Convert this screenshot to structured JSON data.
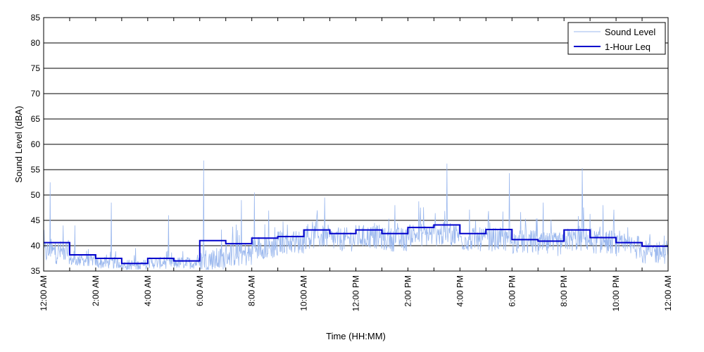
{
  "chart_data": {
    "type": "line",
    "title": "",
    "xlabel": "Time (HH:MM)",
    "ylabel": "Sound Level (dBA)",
    "ylim": [
      35,
      85
    ],
    "yticks": [
      35,
      40,
      45,
      50,
      55,
      60,
      65,
      70,
      75,
      80,
      85
    ],
    "xlim_hours": [
      0,
      24
    ],
    "xtick_labels": [
      "12:00 AM",
      "2:00 AM",
      "4:00 AM",
      "6:00 AM",
      "8:00 AM",
      "10:00 AM",
      "12:00 PM",
      "2:00 PM",
      "4:00 PM",
      "6:00 PM",
      "8:00 PM",
      "10:00 PM",
      "12:00 AM"
    ],
    "grid": "horizontal",
    "legend_position": "top-right",
    "colors": {
      "sound_level": "#9bb8ee",
      "leq": "#0000cc"
    },
    "series": [
      {
        "name": "Sound Level",
        "style": "thin-light-blue",
        "hourly_baseline": [
          38.5,
          37.0,
          36.5,
          36.0,
          36.5,
          36.5,
          37.0,
          38.0,
          39.5,
          40.5,
          41.5,
          41.0,
          41.5,
          41.0,
          42.0,
          42.0,
          41.0,
          41.0,
          40.5,
          40.0,
          41.0,
          40.5,
          39.5,
          38.5
        ],
        "peaks": [
          {
            "hour": 0.25,
            "value": 52.5
          },
          {
            "hour": 0.75,
            "value": 44.0
          },
          {
            "hour": 1.2,
            "value": 44.0
          },
          {
            "hour": 2.6,
            "value": 48.5
          },
          {
            "hour": 4.8,
            "value": 46.0
          },
          {
            "hour": 6.15,
            "value": 56.8
          },
          {
            "hour": 7.6,
            "value": 49.0
          },
          {
            "hour": 8.1,
            "value": 50.5
          },
          {
            "hour": 10.8,
            "value": 49.5
          },
          {
            "hour": 13.5,
            "value": 48.0
          },
          {
            "hour": 15.5,
            "value": 56.2
          },
          {
            "hour": 17.9,
            "value": 54.3
          },
          {
            "hour": 19.2,
            "value": 48.5
          },
          {
            "hour": 20.7,
            "value": 55.3
          },
          {
            "hour": 21.5,
            "value": 48.0
          }
        ]
      },
      {
        "name": "1-Hour Leq",
        "style": "step",
        "hours": [
          0,
          1,
          2,
          3,
          4,
          5,
          6,
          7,
          8,
          9,
          10,
          11,
          12,
          13,
          14,
          15,
          16,
          17,
          18,
          19,
          20,
          21,
          22,
          23
        ],
        "values": [
          40.6,
          38.2,
          37.5,
          36.5,
          37.5,
          37.0,
          41.0,
          40.4,
          41.5,
          41.8,
          43.1,
          42.4,
          43.1,
          42.4,
          43.6,
          44.1,
          42.4,
          43.2,
          41.2,
          40.9,
          43.1,
          41.6,
          40.6,
          39.9
        ]
      }
    ]
  }
}
